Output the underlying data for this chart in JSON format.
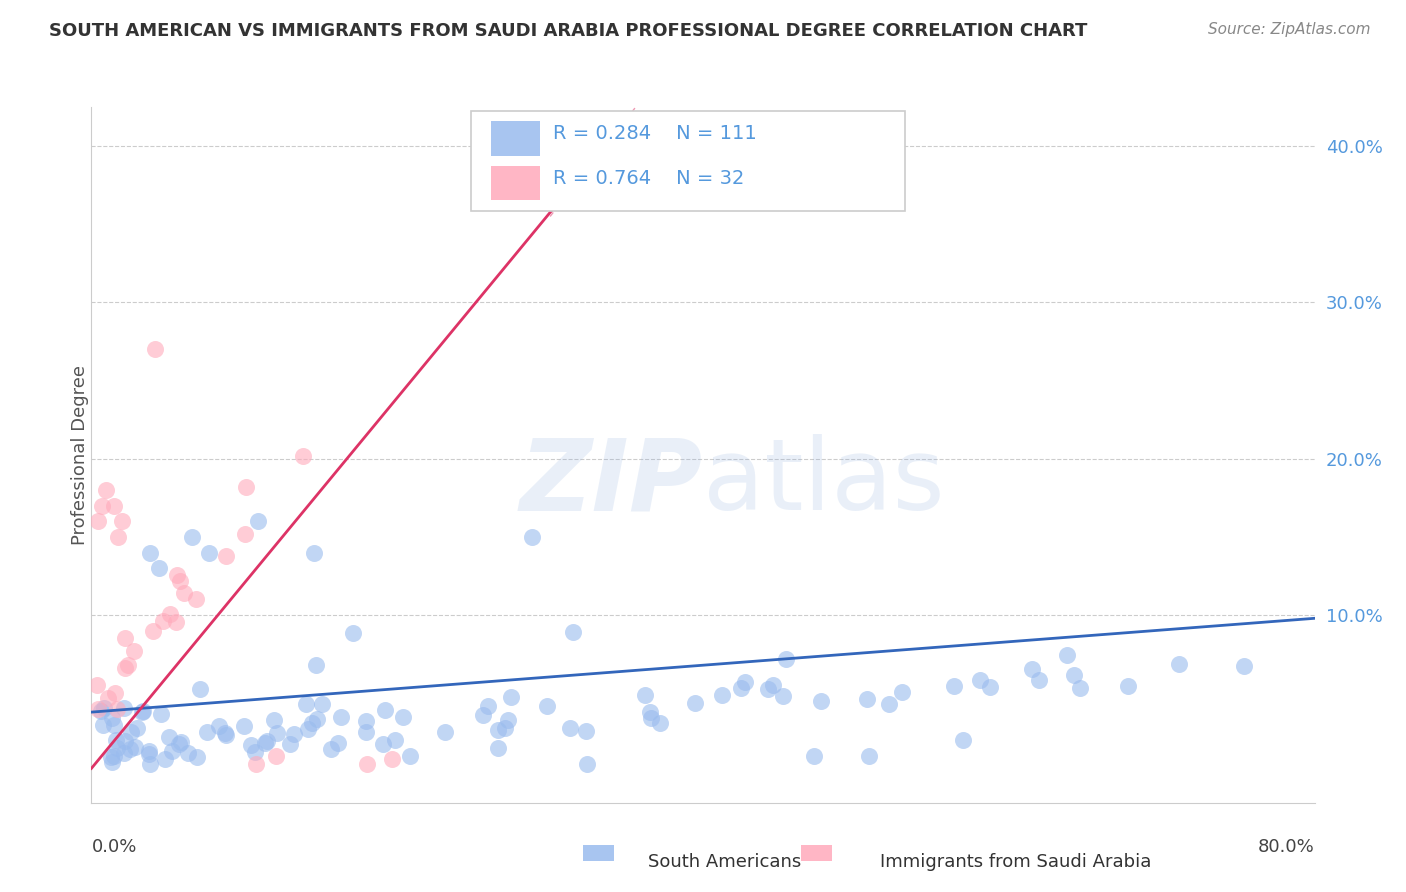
{
  "title": "SOUTH AMERICAN VS IMMIGRANTS FROM SAUDI ARABIA PROFESSIONAL DEGREE CORRELATION CHART",
  "source": "Source: ZipAtlas.com",
  "ylabel": "Professional Degree",
  "xlim": [
    0,
    0.8
  ],
  "ylim": [
    -0.02,
    0.425
  ],
  "blue_R": 0.284,
  "blue_N": 111,
  "pink_R": 0.764,
  "pink_N": 32,
  "blue_color": "#99BBEE",
  "pink_color": "#FFAABB",
  "blue_line_color": "#3366BB",
  "pink_line_color": "#DD3366",
  "legend_label_blue": "South Americans",
  "legend_label_pink": "Immigrants from Saudi Arabia",
  "watermark_zip": "ZIP",
  "watermark_atlas": "atlas",
  "blue_trend_x0": 0.0,
  "blue_trend_x1": 0.8,
  "blue_trend_y0": 0.038,
  "blue_trend_y1": 0.098,
  "pink_trend_x0": 0.0,
  "pink_trend_x1": 0.34,
  "pink_trend_y0": 0.002,
  "pink_trend_y1": 0.405,
  "yticks": [
    0.0,
    0.1,
    0.2,
    0.3,
    0.4
  ],
  "ytick_labels": [
    "",
    "10.0%",
    "20.0%",
    "30.0%",
    "40.0%"
  ],
  "grid_color": "#CCCCCC",
  "title_color": "#333333",
  "source_color": "#888888",
  "axis_color": "#CCCCCC",
  "tick_label_color": "#5599DD",
  "r_n_color": "#5599DD"
}
